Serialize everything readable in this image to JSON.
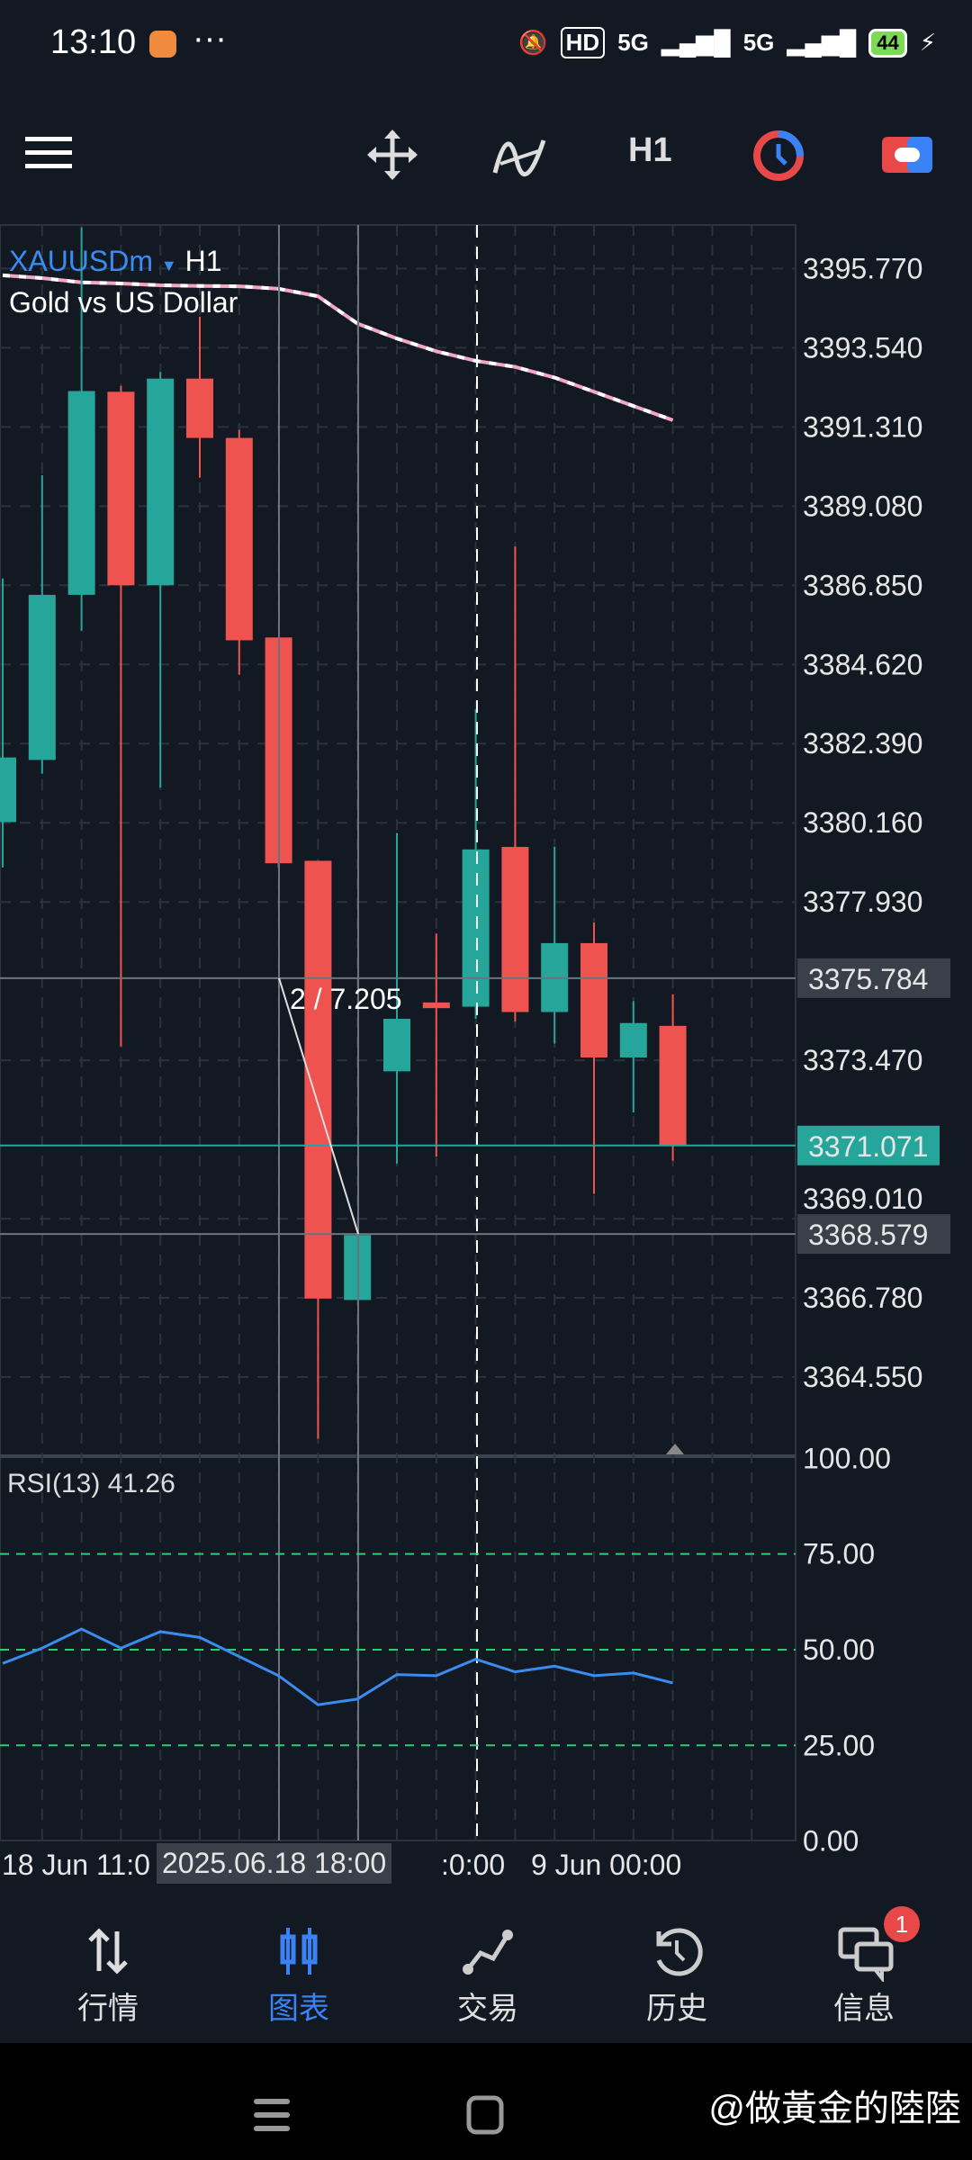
{
  "status_bar": {
    "time": "13:10",
    "more": "···",
    "network": "5G",
    "network2": "5G",
    "hd": "HD",
    "battery": "44"
  },
  "toolbar": {
    "timeframe": "H1",
    "icons": [
      "menu-icon",
      "crosshair-move-icon",
      "indicators-icon",
      "clock-icon",
      "toggle-icon"
    ]
  },
  "chart": {
    "symbol": "XAUUSDm",
    "timeframe": "H1",
    "description": "Gold vs US Dollar",
    "colors": {
      "up": "#26a69a",
      "down": "#ef5350",
      "rsi": "#3b8cf0",
      "levels": "#2ecc71"
    },
    "price_ticks": [
      "3395.770",
      "3393.540",
      "3391.310",
      "3389.080",
      "3386.850",
      "3384.620",
      "3382.390",
      "3380.160",
      "3377.930",
      "3373.470",
      "3369.010",
      "3366.780",
      "3364.550"
    ],
    "price_lines": [
      {
        "label": "3375.784",
        "value": 3375.784,
        "kind": "crosshair"
      },
      {
        "label": "3371.071",
        "value": 3371.071,
        "kind": "bid"
      },
      {
        "label": "3368.579",
        "value": 3368.579,
        "kind": "crosshair"
      }
    ],
    "measure_label": "2 / 7.205",
    "candles": [
      {
        "o": 3380.18,
        "h": 3387.04,
        "l": 3378.9,
        "c": 3382.0
      },
      {
        "o": 3381.93,
        "h": 3389.95,
        "l": 3381.54,
        "c": 3386.58
      },
      {
        "o": 3386.58,
        "h": 3396.93,
        "l": 3385.57,
        "c": 3392.32
      },
      {
        "o": 3392.3,
        "h": 3392.47,
        "l": 3373.86,
        "c": 3386.85
      },
      {
        "o": 3386.85,
        "h": 3392.86,
        "l": 3381.15,
        "c": 3392.67
      },
      {
        "o": 3392.67,
        "h": 3394.41,
        "l": 3389.88,
        "c": 3391.0
      },
      {
        "o": 3391.0,
        "h": 3391.23,
        "l": 3384.33,
        "c": 3385.3
      },
      {
        "o": 3385.38,
        "h": 3385.38,
        "l": 3378.9,
        "c": 3379.02
      },
      {
        "o": 3379.09,
        "h": 3379.09,
        "l": 3362.81,
        "c": 3366.76
      },
      {
        "o": 3366.72,
        "h": 3368.6,
        "l": 3366.72,
        "c": 3368.55
      },
      {
        "o": 3373.16,
        "h": 3379.87,
        "l": 3370.56,
        "c": 3374.64
      },
      {
        "o": 3375.1,
        "h": 3377.04,
        "l": 3370.76,
        "c": 3374.94
      },
      {
        "o": 3374.98,
        "h": 3383.36,
        "l": 3374.64,
        "c": 3379.41
      },
      {
        "o": 3379.48,
        "h": 3387.94,
        "l": 3374.56,
        "c": 3374.83
      },
      {
        "o": 3374.83,
        "h": 3379.48,
        "l": 3373.94,
        "c": 3376.77
      },
      {
        "o": 3376.77,
        "h": 3377.35,
        "l": 3369.71,
        "c": 3373.55
      },
      {
        "o": 3373.55,
        "h": 3375.14,
        "l": 3372.0,
        "c": 3374.52
      },
      {
        "o": 3374.44,
        "h": 3375.33,
        "l": 3370.64,
        "c": 3371.07
      }
    ],
    "moving_average": [
      3395.58,
      3395.5,
      3395.38,
      3395.35,
      3395.3,
      3395.28,
      3395.27,
      3395.2,
      3394.99,
      3394.22,
      3393.8,
      3393.44,
      3393.17,
      3393.0,
      3392.7,
      3392.3,
      3391.9,
      3391.5
    ],
    "rsi": {
      "label": "RSI(13) 41.26",
      "ticks": [
        "100.00",
        "75.00",
        "50.00",
        "25.00",
        "0.00"
      ],
      "levels": [
        75,
        50,
        25
      ],
      "values": [
        46.4,
        50.4,
        55.4,
        50.4,
        54.7,
        53.2,
        48.2,
        43.2,
        35.6,
        37.1,
        43.5,
        43.2,
        47.5,
        44.2,
        45.7,
        43.2,
        43.9,
        41.3
      ]
    },
    "time_labels": {
      "left": "18 Jun 11:0",
      "highlight": "2025.06.18 18:00",
      "mid": ":0:00",
      "right": "9 Jun 00:00"
    }
  },
  "nav": [
    {
      "label": "行情",
      "icon": "quotes-icon"
    },
    {
      "label": "图表",
      "icon": "chart-icon",
      "active": true
    },
    {
      "label": "交易",
      "icon": "trade-icon"
    },
    {
      "label": "历史",
      "icon": "history-icon"
    },
    {
      "label": "信息",
      "icon": "messages-icon",
      "badge": "1"
    }
  ],
  "watermark": "@做黃金的陸陸"
}
